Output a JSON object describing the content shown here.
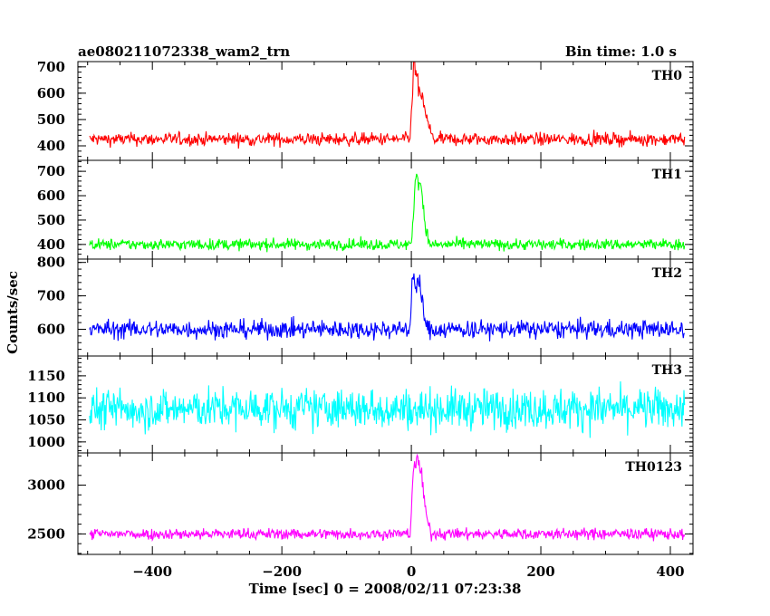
{
  "header": {
    "title": "ae080211072338_wam2_trn",
    "bin_time": "Bin time: 1.0 s"
  },
  "chart_data": {
    "type": "line",
    "title": "ae080211072338_wam2_trn",
    "subtitle": "Bin time: 1.0 s",
    "xlabel": "Time [sec] 0 = 2008/02/11 07:23:38",
    "ylabel": "Counts/sec",
    "xlim": [
      -515,
      435
    ],
    "x_ticks": [
      "−400",
      "−200",
      "0",
      "200",
      "400"
    ],
    "x_tick_values": [
      -400,
      -200,
      0,
      200,
      400
    ],
    "grid": false,
    "panels": [
      {
        "name": "TH0",
        "color": "#ff0000",
        "ylim": [
          345,
          720
        ],
        "ticks": [
          400,
          500,
          600,
          700
        ],
        "x_range": [
          -497,
          422
        ],
        "baseline": 425,
        "noise": 32,
        "burst": [
          [
            -2,
            0
          ],
          [
            4,
            300
          ],
          [
            8,
            240
          ],
          [
            14,
            170
          ],
          [
            20,
            120
          ],
          [
            28,
            40
          ],
          [
            34,
            0
          ]
        ]
      },
      {
        "name": "TH1",
        "color": "#00ff00",
        "ylim": [
          340,
          745
        ],
        "ticks": [
          400,
          500,
          600,
          700
        ],
        "x_range": [
          -497,
          422
        ],
        "baseline": 400,
        "noise": 30,
        "burst": [
          [
            0,
            0
          ],
          [
            4,
            160
          ],
          [
            8,
            310
          ],
          [
            12,
            270
          ],
          [
            16,
            220
          ],
          [
            22,
            70
          ],
          [
            28,
            0
          ]
        ]
      },
      {
        "name": "TH2",
        "color": "#0000ff",
        "ylim": [
          520,
          810
        ],
        "ticks": [
          600,
          700,
          800
        ],
        "x_range": [
          -497,
          422
        ],
        "baseline": 600,
        "noise": 36,
        "burst": [
          [
            -2,
            0
          ],
          [
            2,
            180
          ],
          [
            6,
            120
          ],
          [
            10,
            150
          ],
          [
            16,
            90
          ],
          [
            24,
            0
          ]
        ]
      },
      {
        "name": "TH3",
        "color": "#00ffff",
        "ylim": [
          975,
          1195
        ],
        "ticks": [
          1000,
          1050,
          1100,
          1150
        ],
        "x_range": [
          -497,
          422
        ],
        "baseline": 1075,
        "noise": 60,
        "burst": []
      },
      {
        "name": "TH0123",
        "color": "#ff00ff",
        "ylim": [
          2290,
          3330
        ],
        "ticks": [
          2500,
          3000
        ],
        "x_range": [
          -497,
          422
        ],
        "baseline": 2500,
        "noise": 75,
        "burst": [
          [
            -2,
            0
          ],
          [
            4,
            750
          ],
          [
            10,
            700
          ],
          [
            16,
            600
          ],
          [
            22,
            220
          ],
          [
            30,
            0
          ]
        ]
      }
    ]
  }
}
